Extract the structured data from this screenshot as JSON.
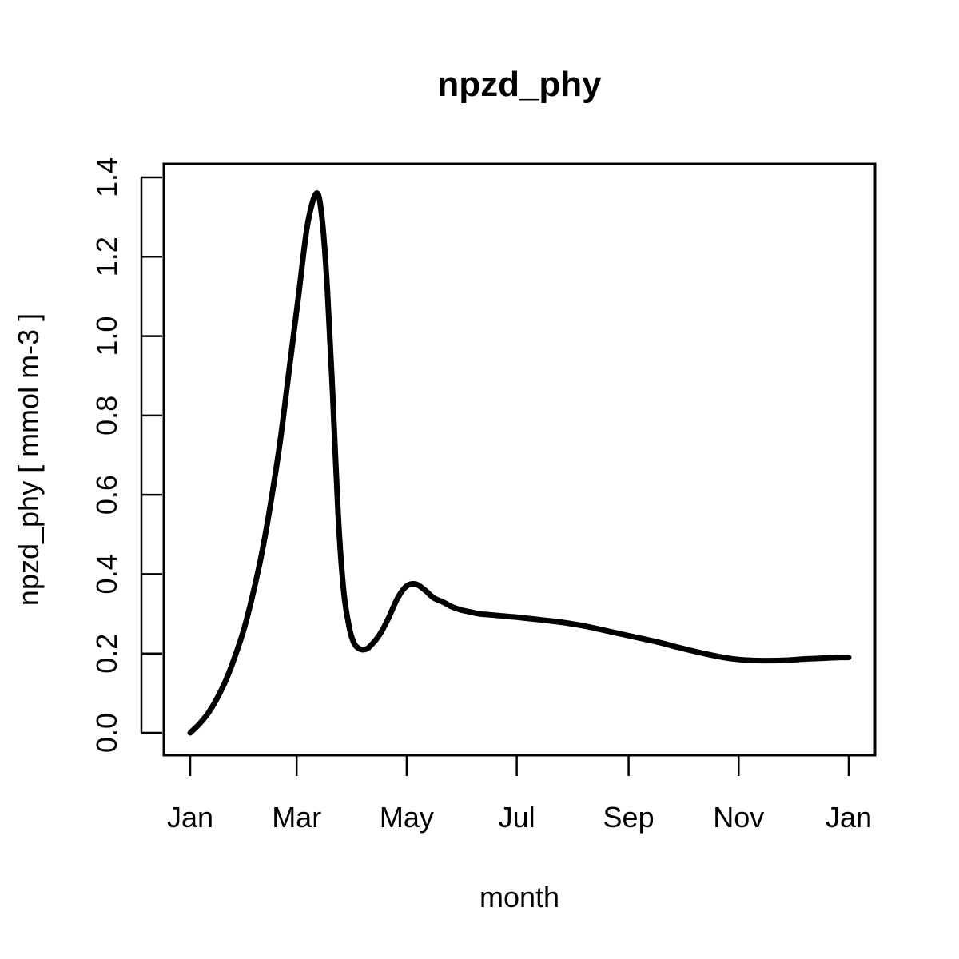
{
  "chart_data": {
    "type": "line",
    "title": "npzd_phy",
    "xlabel": "month",
    "ylabel": "npzd_phy [ mmol m-3 ]",
    "x_unit": "day of year",
    "xlim": [
      0,
      365
    ],
    "ylim": [
      0,
      1.4
    ],
    "x_ticks": [
      {
        "label": "Jan",
        "value": 0
      },
      {
        "label": "Mar",
        "value": 59
      },
      {
        "label": "May",
        "value": 120
      },
      {
        "label": "Jul",
        "value": 181
      },
      {
        "label": "Sep",
        "value": 243
      },
      {
        "label": "Nov",
        "value": 304
      },
      {
        "label": "Jan",
        "value": 365
      }
    ],
    "y_ticks": [
      {
        "label": "0.0",
        "value": 0.0
      },
      {
        "label": "0.2",
        "value": 0.2
      },
      {
        "label": "0.4",
        "value": 0.4
      },
      {
        "label": "0.6",
        "value": 0.6
      },
      {
        "label": "0.8",
        "value": 0.8
      },
      {
        "label": "1.0",
        "value": 1.0
      },
      {
        "label": "1.2",
        "value": 1.2
      },
      {
        "label": "1.4",
        "value": 1.4
      }
    ],
    "grid": false,
    "series": [
      {
        "color": "#000000",
        "x": [
          0,
          5,
          10,
          15,
          20,
          25,
          30,
          35,
          40,
          45,
          50,
          55,
          60,
          65,
          70,
          73,
          76,
          79,
          82,
          85,
          88,
          90,
          92,
          95,
          98,
          100,
          103,
          106,
          110,
          115,
          120,
          125,
          130,
          135,
          140,
          145,
          150,
          155,
          160,
          165,
          170,
          175,
          180,
          190,
          200,
          210,
          220,
          230,
          240,
          250,
          260,
          270,
          280,
          290,
          300,
          310,
          320,
          330,
          340,
          350,
          360,
          365
        ],
        "y": [
          0.0,
          0.022,
          0.05,
          0.088,
          0.135,
          0.195,
          0.265,
          0.355,
          0.46,
          0.59,
          0.74,
          0.92,
          1.1,
          1.28,
          1.36,
          1.3,
          1.12,
          0.85,
          0.55,
          0.36,
          0.27,
          0.235,
          0.218,
          0.21,
          0.212,
          0.22,
          0.235,
          0.255,
          0.29,
          0.34,
          0.37,
          0.375,
          0.36,
          0.34,
          0.33,
          0.318,
          0.31,
          0.305,
          0.3,
          0.298,
          0.296,
          0.294,
          0.292,
          0.287,
          0.282,
          0.276,
          0.268,
          0.258,
          0.248,
          0.238,
          0.228,
          0.216,
          0.205,
          0.195,
          0.187,
          0.183,
          0.182,
          0.183,
          0.186,
          0.188,
          0.19,
          0.19
        ]
      }
    ]
  }
}
